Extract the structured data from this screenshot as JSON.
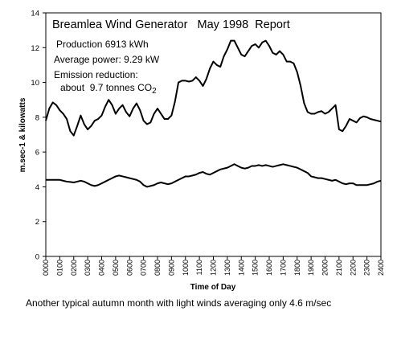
{
  "chart_data": {
    "type": "line",
    "title": "Breamlea Wind Generator   May 1998  Report",
    "annotations": {
      "production": "Production 6913 kWh",
      "average_power": "Average power: 9.29 kW",
      "emission_heading": "Emission reduction:",
      "emission_value": "about  9.7 tonnes CO",
      "emission_sub": "2"
    },
    "xlabel": "Time of Day",
    "ylabel": "m.sec-1 & kilowatts",
    "ylim": [
      0,
      14
    ],
    "yticks": [
      "0",
      "2",
      "4",
      "6",
      "8",
      "10",
      "12",
      "14"
    ],
    "x_hours": [
      0,
      24
    ],
    "xtick_labels": [
      "0000",
      "0100",
      "0200",
      "0300",
      "0400",
      "0500",
      "0600",
      "0700",
      "0800",
      "0900",
      "1000",
      "1100",
      "1200",
      "1300",
      "1400",
      "1500",
      "1600",
      "1700",
      "1800",
      "1900",
      "2000",
      "2100",
      "2200",
      "2300",
      "2400"
    ],
    "grid": false,
    "legend": "none",
    "series": [
      {
        "color": "#000000",
        "x": [
          0,
          0.25,
          0.5,
          0.75,
          1,
          1.25,
          1.5,
          1.75,
          2,
          2.25,
          2.5,
          2.75,
          3,
          3.25,
          3.5,
          3.75,
          4,
          4.25,
          4.5,
          4.75,
          5,
          5.25,
          5.5,
          5.75,
          6,
          6.25,
          6.5,
          6.75,
          7,
          7.25,
          7.5,
          7.75,
          8,
          8.25,
          8.5,
          8.75,
          9,
          9.25,
          9.5,
          9.75,
          10,
          10.25,
          10.5,
          10.75,
          11,
          11.25,
          11.5,
          11.75,
          12,
          12.25,
          12.5,
          12.75,
          13,
          13.25,
          13.5,
          13.75,
          14,
          14.25,
          14.5,
          14.75,
          15,
          15.25,
          15.5,
          15.75,
          16,
          16.25,
          16.5,
          16.75,
          17,
          17.25,
          17.5,
          17.75,
          18,
          18.25,
          18.5,
          18.75,
          19,
          19.25,
          19.5,
          19.75,
          20,
          20.25,
          20.5,
          20.75,
          21,
          21.25,
          21.5,
          21.75,
          22,
          22.25,
          22.5,
          22.75,
          23,
          23.25,
          23.5,
          23.75,
          24
        ],
        "values": [
          7.8,
          8.5,
          8.85,
          8.7,
          8.4,
          8.2,
          7.9,
          7.2,
          6.95,
          7.5,
          8.1,
          7.6,
          7.3,
          7.5,
          7.8,
          7.9,
          8.1,
          8.6,
          9.0,
          8.7,
          8.2,
          8.5,
          8.7,
          8.3,
          8.05,
          8.5,
          8.8,
          8.4,
          7.8,
          7.6,
          7.7,
          8.2,
          8.5,
          8.2,
          7.9,
          7.9,
          8.1,
          8.9,
          10.0,
          10.1,
          10.1,
          10.05,
          10.1,
          10.3,
          10.1,
          9.8,
          10.2,
          10.8,
          11.2,
          11.0,
          10.9,
          11.5,
          11.9,
          12.4,
          12.4,
          12.0,
          11.6,
          11.5,
          11.8,
          12.1,
          12.2,
          12.0,
          12.3,
          12.4,
          12.1,
          11.7,
          11.6,
          11.8,
          11.6,
          11.2,
          11.2,
          11.1,
          10.6,
          9.8,
          8.8,
          8.3,
          8.2,
          8.2,
          8.3,
          8.35,
          8.2,
          8.3,
          8.5,
          8.7,
          7.3,
          7.2,
          7.5,
          7.9,
          7.8,
          7.7,
          7.95,
          8.05,
          8.0,
          7.9,
          7.85,
          7.8,
          7.75
        ]
      },
      {
        "color": "#000000",
        "x": [
          0,
          0.25,
          0.5,
          0.75,
          1,
          1.25,
          1.5,
          1.75,
          2,
          2.25,
          2.5,
          2.75,
          3,
          3.25,
          3.5,
          3.75,
          4,
          4.25,
          4.5,
          4.75,
          5,
          5.25,
          5.5,
          5.75,
          6,
          6.25,
          6.5,
          6.75,
          7,
          7.25,
          7.5,
          7.75,
          8,
          8.25,
          8.5,
          8.75,
          9,
          9.25,
          9.5,
          9.75,
          10,
          10.25,
          10.5,
          10.75,
          11,
          11.25,
          11.5,
          11.75,
          12,
          12.25,
          12.5,
          12.75,
          13,
          13.25,
          13.5,
          13.75,
          14,
          14.25,
          14.5,
          14.75,
          15,
          15.25,
          15.5,
          15.75,
          16,
          16.25,
          16.5,
          16.75,
          17,
          17.25,
          17.5,
          17.75,
          18,
          18.25,
          18.5,
          18.75,
          19,
          19.25,
          19.5,
          19.75,
          20,
          20.25,
          20.5,
          20.75,
          21,
          21.25,
          21.5,
          21.75,
          22,
          22.25,
          22.5,
          22.75,
          23,
          23.25,
          23.5,
          23.75,
          24
        ],
        "values": [
          4.4,
          4.4,
          4.4,
          4.4,
          4.4,
          4.35,
          4.3,
          4.28,
          4.25,
          4.3,
          4.35,
          4.3,
          4.2,
          4.1,
          4.05,
          4.1,
          4.2,
          4.3,
          4.4,
          4.5,
          4.6,
          4.65,
          4.6,
          4.55,
          4.5,
          4.45,
          4.4,
          4.3,
          4.1,
          4.0,
          4.05,
          4.1,
          4.2,
          4.25,
          4.2,
          4.15,
          4.2,
          4.3,
          4.4,
          4.5,
          4.6,
          4.6,
          4.65,
          4.7,
          4.8,
          4.85,
          4.75,
          4.7,
          4.8,
          4.9,
          5.0,
          5.05,
          5.1,
          5.2,
          5.3,
          5.2,
          5.1,
          5.05,
          5.1,
          5.2,
          5.2,
          5.25,
          5.2,
          5.25,
          5.2,
          5.15,
          5.2,
          5.25,
          5.3,
          5.25,
          5.2,
          5.15,
          5.1,
          5.0,
          4.9,
          4.8,
          4.6,
          4.55,
          4.5,
          4.5,
          4.45,
          4.4,
          4.35,
          4.4,
          4.3,
          4.2,
          4.15,
          4.2,
          4.2,
          4.1,
          4.1,
          4.1,
          4.1,
          4.15,
          4.2,
          4.3,
          4.35
        ]
      }
    ]
  },
  "caption": "Another typical autumn month with light winds averaging only 4.6 m/sec"
}
